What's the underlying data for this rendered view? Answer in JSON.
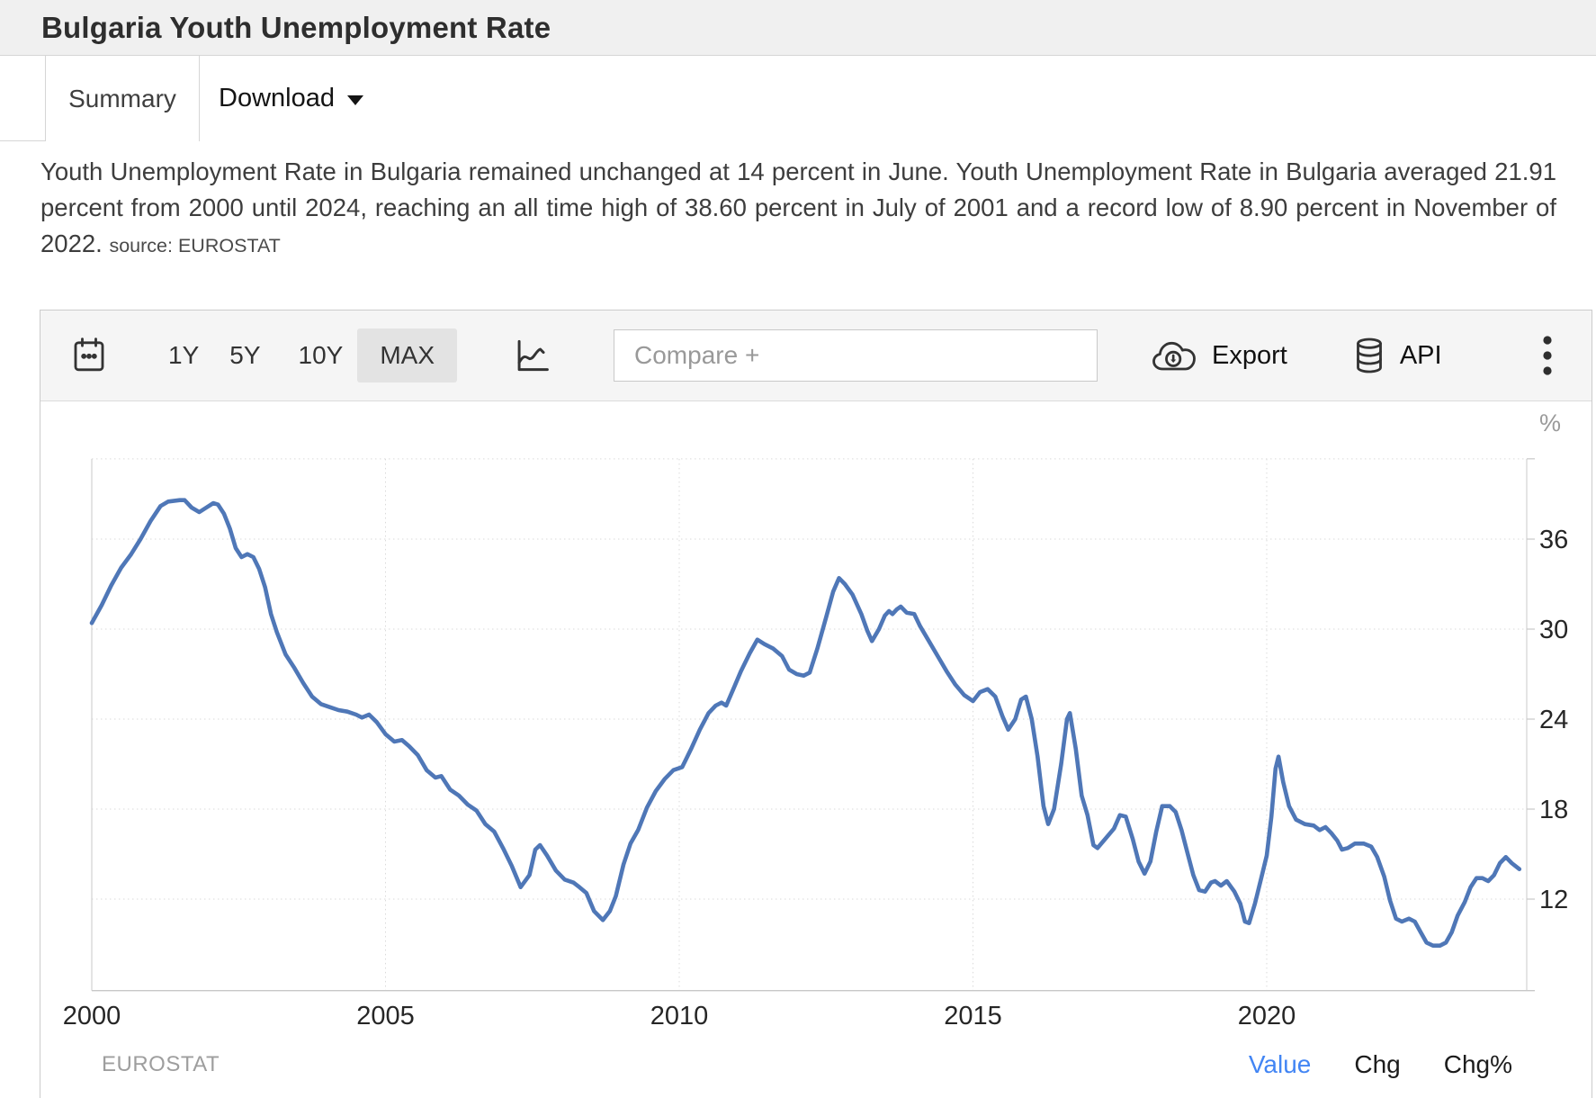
{
  "header": {
    "title": "Bulgaria Youth Unemployment Rate"
  },
  "tabs": {
    "summary": "Summary",
    "download": "Download"
  },
  "description": {
    "text": "Youth Unemployment Rate in Bulgaria remained unchanged at 14 percent in June. Youth Unemployment Rate in Bulgaria averaged 21.91 percent from 2000 until 2024, reaching an all time high of 38.60 percent in July of 2001 and a record low of 8.90 percent in November of 2022.",
    "source": "source: EUROSTAT"
  },
  "toolbar": {
    "range_buttons": [
      {
        "label": "1Y"
      },
      {
        "label": "5Y"
      },
      {
        "label": "10Y"
      },
      {
        "label": "MAX"
      }
    ],
    "active_range": "MAX",
    "compare_placeholder": "Compare +",
    "export_label": "Export",
    "api_label": "API",
    "icons": [
      "calendar-icon",
      "line-chart-icon",
      "cloud-download-icon",
      "database-icon",
      "kebab-menu-icon"
    ]
  },
  "chart_data": {
    "type": "line",
    "title": "Bulgaria Youth Unemployment Rate",
    "ylabel": "%",
    "xlabel": "",
    "legend": "none",
    "grid": true,
    "x_ticks": [
      2000,
      2005,
      2010,
      2015,
      2020
    ],
    "y_ticks": [
      12,
      18,
      24,
      30,
      36
    ],
    "xlim": [
      2000,
      2024.42
    ],
    "ylim": [
      5.9,
      41.35
    ],
    "line_color": "#4f77b7",
    "series": [
      {
        "name": "Youth Unemployment Rate (%)",
        "points": [
          [
            2000.0,
            30.4
          ],
          [
            2000.17,
            31.6
          ],
          [
            2000.33,
            32.9
          ],
          [
            2000.5,
            34.1
          ],
          [
            2000.67,
            35.0
          ],
          [
            2000.83,
            36.0
          ],
          [
            2001.0,
            37.2
          ],
          [
            2001.17,
            38.2
          ],
          [
            2001.3,
            38.5
          ],
          [
            2001.5,
            38.6
          ],
          [
            2001.58,
            38.6
          ],
          [
            2001.7,
            38.1
          ],
          [
            2001.83,
            37.8
          ],
          [
            2001.95,
            38.1
          ],
          [
            2002.07,
            38.4
          ],
          [
            2002.15,
            38.3
          ],
          [
            2002.25,
            37.7
          ],
          [
            2002.35,
            36.7
          ],
          [
            2002.45,
            35.4
          ],
          [
            2002.55,
            34.8
          ],
          [
            2002.65,
            35.0
          ],
          [
            2002.75,
            34.8
          ],
          [
            2002.85,
            34.0
          ],
          [
            2002.95,
            32.8
          ],
          [
            2003.05,
            31.0
          ],
          [
            2003.15,
            29.8
          ],
          [
            2003.3,
            28.3
          ],
          [
            2003.45,
            27.4
          ],
          [
            2003.6,
            26.4
          ],
          [
            2003.75,
            25.5
          ],
          [
            2003.9,
            25.0
          ],
          [
            2004.05,
            24.8
          ],
          [
            2004.2,
            24.6
          ],
          [
            2004.35,
            24.5
          ],
          [
            2004.5,
            24.3
          ],
          [
            2004.6,
            24.1
          ],
          [
            2004.72,
            24.3
          ],
          [
            2004.85,
            23.8
          ],
          [
            2005.0,
            23.0
          ],
          [
            2005.15,
            22.5
          ],
          [
            2005.28,
            22.6
          ],
          [
            2005.4,
            22.2
          ],
          [
            2005.55,
            21.6
          ],
          [
            2005.7,
            20.6
          ],
          [
            2005.85,
            20.1
          ],
          [
            2005.95,
            20.2
          ],
          [
            2006.1,
            19.3
          ],
          [
            2006.25,
            18.9
          ],
          [
            2006.4,
            18.3
          ],
          [
            2006.55,
            17.9
          ],
          [
            2006.7,
            17.0
          ],
          [
            2006.85,
            16.5
          ],
          [
            2007.0,
            15.4
          ],
          [
            2007.15,
            14.2
          ],
          [
            2007.3,
            12.8
          ],
          [
            2007.45,
            13.6
          ],
          [
            2007.55,
            15.3
          ],
          [
            2007.63,
            15.6
          ],
          [
            2007.75,
            14.9
          ],
          [
            2007.9,
            13.9
          ],
          [
            2008.05,
            13.3
          ],
          [
            2008.2,
            13.1
          ],
          [
            2008.3,
            12.8
          ],
          [
            2008.42,
            12.4
          ],
          [
            2008.55,
            11.2
          ],
          [
            2008.7,
            10.6
          ],
          [
            2008.82,
            11.2
          ],
          [
            2008.92,
            12.2
          ],
          [
            2009.05,
            14.3
          ],
          [
            2009.17,
            15.7
          ],
          [
            2009.3,
            16.6
          ],
          [
            2009.45,
            18.1
          ],
          [
            2009.6,
            19.2
          ],
          [
            2009.75,
            20.0
          ],
          [
            2009.9,
            20.6
          ],
          [
            2010.05,
            20.8
          ],
          [
            2010.2,
            22.0
          ],
          [
            2010.35,
            23.3
          ],
          [
            2010.5,
            24.4
          ],
          [
            2010.62,
            24.9
          ],
          [
            2010.72,
            25.1
          ],
          [
            2010.8,
            24.9
          ],
          [
            2010.92,
            26.0
          ],
          [
            2011.05,
            27.2
          ],
          [
            2011.2,
            28.4
          ],
          [
            2011.33,
            29.3
          ],
          [
            2011.45,
            29.0
          ],
          [
            2011.6,
            28.7
          ],
          [
            2011.75,
            28.2
          ],
          [
            2011.87,
            27.3
          ],
          [
            2012.0,
            27.0
          ],
          [
            2012.12,
            26.9
          ],
          [
            2012.22,
            27.1
          ],
          [
            2012.35,
            28.7
          ],
          [
            2012.5,
            30.8
          ],
          [
            2012.62,
            32.5
          ],
          [
            2012.72,
            33.4
          ],
          [
            2012.82,
            33.0
          ],
          [
            2012.95,
            32.3
          ],
          [
            2013.1,
            31.0
          ],
          [
            2013.2,
            29.9
          ],
          [
            2013.28,
            29.2
          ],
          [
            2013.4,
            30.0
          ],
          [
            2013.5,
            30.9
          ],
          [
            2013.57,
            31.2
          ],
          [
            2013.63,
            31.0
          ],
          [
            2013.7,
            31.3
          ],
          [
            2013.77,
            31.5
          ],
          [
            2013.87,
            31.1
          ],
          [
            2014.0,
            31.0
          ],
          [
            2014.1,
            30.2
          ],
          [
            2014.25,
            29.2
          ],
          [
            2014.4,
            28.2
          ],
          [
            2014.55,
            27.2
          ],
          [
            2014.7,
            26.3
          ],
          [
            2014.85,
            25.6
          ],
          [
            2015.0,
            25.2
          ],
          [
            2015.12,
            25.8
          ],
          [
            2015.25,
            26.0
          ],
          [
            2015.38,
            25.5
          ],
          [
            2015.5,
            24.2
          ],
          [
            2015.6,
            23.3
          ],
          [
            2015.72,
            24.0
          ],
          [
            2015.82,
            25.3
          ],
          [
            2015.9,
            25.5
          ],
          [
            2016.0,
            24.0
          ],
          [
            2016.1,
            21.5
          ],
          [
            2016.2,
            18.2
          ],
          [
            2016.28,
            17.0
          ],
          [
            2016.38,
            18.0
          ],
          [
            2016.5,
            21.0
          ],
          [
            2016.6,
            24.0
          ],
          [
            2016.65,
            24.4
          ],
          [
            2016.75,
            22.0
          ],
          [
            2016.85,
            18.9
          ],
          [
            2016.95,
            17.6
          ],
          [
            2017.05,
            15.6
          ],
          [
            2017.12,
            15.4
          ],
          [
            2017.25,
            16.0
          ],
          [
            2017.4,
            16.7
          ],
          [
            2017.5,
            17.6
          ],
          [
            2017.6,
            17.5
          ],
          [
            2017.72,
            16.0
          ],
          [
            2017.82,
            14.5
          ],
          [
            2017.92,
            13.7
          ],
          [
            2018.02,
            14.5
          ],
          [
            2018.12,
            16.5
          ],
          [
            2018.22,
            18.2
          ],
          [
            2018.35,
            18.2
          ],
          [
            2018.45,
            17.8
          ],
          [
            2018.55,
            16.6
          ],
          [
            2018.65,
            15.1
          ],
          [
            2018.75,
            13.6
          ],
          [
            2018.85,
            12.6
          ],
          [
            2018.95,
            12.5
          ],
          [
            2019.05,
            13.1
          ],
          [
            2019.12,
            13.2
          ],
          [
            2019.22,
            12.9
          ],
          [
            2019.32,
            13.2
          ],
          [
            2019.45,
            12.5
          ],
          [
            2019.55,
            11.7
          ],
          [
            2019.63,
            10.5
          ],
          [
            2019.7,
            10.4
          ],
          [
            2019.8,
            11.7
          ],
          [
            2019.9,
            13.3
          ],
          [
            2020.0,
            14.9
          ],
          [
            2020.08,
            17.5
          ],
          [
            2020.15,
            20.7
          ],
          [
            2020.2,
            21.5
          ],
          [
            2020.28,
            19.8
          ],
          [
            2020.38,
            18.2
          ],
          [
            2020.5,
            17.3
          ],
          [
            2020.65,
            17.0
          ],
          [
            2020.8,
            16.9
          ],
          [
            2020.9,
            16.6
          ],
          [
            2021.0,
            16.8
          ],
          [
            2021.1,
            16.4
          ],
          [
            2021.2,
            15.9
          ],
          [
            2021.28,
            15.3
          ],
          [
            2021.38,
            15.4
          ],
          [
            2021.5,
            15.7
          ],
          [
            2021.65,
            15.7
          ],
          [
            2021.78,
            15.5
          ],
          [
            2021.88,
            14.8
          ],
          [
            2022.0,
            13.5
          ],
          [
            2022.1,
            11.9
          ],
          [
            2022.2,
            10.7
          ],
          [
            2022.3,
            10.5
          ],
          [
            2022.42,
            10.7
          ],
          [
            2022.52,
            10.5
          ],
          [
            2022.62,
            9.8
          ],
          [
            2022.72,
            9.1
          ],
          [
            2022.83,
            8.9
          ],
          [
            2022.95,
            8.9
          ],
          [
            2023.05,
            9.1
          ],
          [
            2023.15,
            9.8
          ],
          [
            2023.25,
            10.9
          ],
          [
            2023.37,
            11.8
          ],
          [
            2023.47,
            12.8
          ],
          [
            2023.57,
            13.4
          ],
          [
            2023.67,
            13.4
          ],
          [
            2023.77,
            13.2
          ],
          [
            2023.87,
            13.6
          ],
          [
            2023.97,
            14.4
          ],
          [
            2024.07,
            14.8
          ],
          [
            2024.17,
            14.4
          ],
          [
            2024.3,
            14.0
          ]
        ]
      }
    ]
  },
  "chart_footer": {
    "source": "EUROSTAT",
    "links": [
      {
        "label": "Value"
      },
      {
        "label": "Chg"
      },
      {
        "label": "Chg%"
      }
    ],
    "active_link": "Value"
  },
  "colors": {
    "accent_blue": "#4285f4",
    "line": "#4f77b7",
    "active_button_bg": "#e3e3e3"
  }
}
